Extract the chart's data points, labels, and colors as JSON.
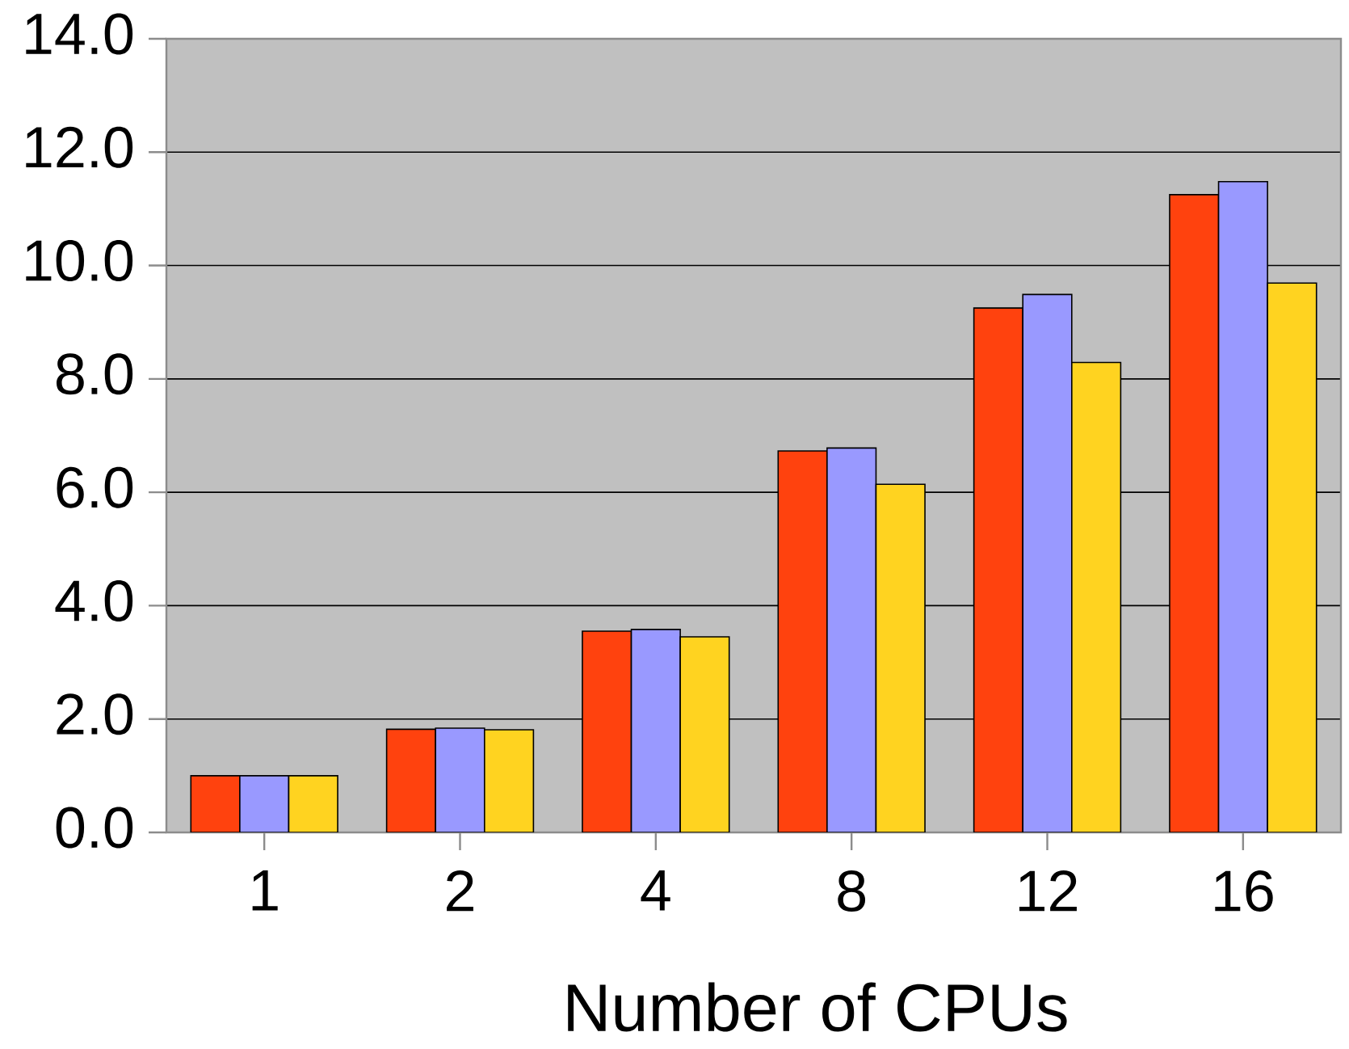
{
  "chart_data": {
    "type": "bar",
    "xlabel": "Number of CPUs",
    "categories": [
      "1",
      "2",
      "4",
      "8",
      "12",
      "16"
    ],
    "series": [
      {
        "color": "#ff420e",
        "values": [
          1.0,
          1.82,
          3.55,
          6.73,
          9.25,
          11.25
        ]
      },
      {
        "color": "#9999ff",
        "values": [
          1.0,
          1.84,
          3.58,
          6.78,
          9.49,
          11.48
        ]
      },
      {
        "color": "#ffd320",
        "values": [
          1.0,
          1.81,
          3.45,
          6.14,
          8.29,
          9.69
        ]
      }
    ],
    "ylim": [
      0,
      14
    ],
    "yticks": [
      {
        "value": 0,
        "label": "0.0"
      },
      {
        "value": 2,
        "label": "2.0"
      },
      {
        "value": 4,
        "label": "4.0"
      },
      {
        "value": 6,
        "label": "6.0"
      },
      {
        "value": 8,
        "label": "8.0"
      },
      {
        "value": 10,
        "label": "10.0"
      },
      {
        "value": 12,
        "label": "12.0"
      },
      {
        "value": 14,
        "label": "14.0"
      }
    ],
    "grid": "y"
  }
}
